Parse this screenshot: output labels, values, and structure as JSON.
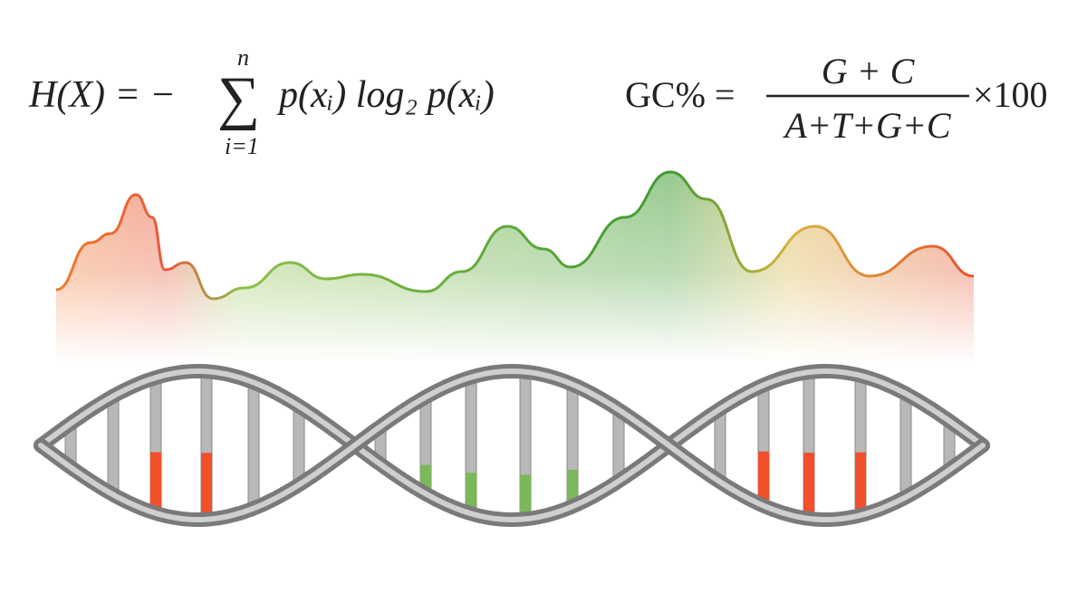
{
  "entropy": {
    "lhs": "H(X) = −",
    "symbol": "∑",
    "upper": "n",
    "lower": "i=1",
    "body": "p(xᵢ) log₂ p(xᵢ)"
  },
  "gc": {
    "lhs": "GC% =",
    "numerator": "G + C",
    "denominator": "A+T+G+C",
    "factor": "×100"
  }
}
